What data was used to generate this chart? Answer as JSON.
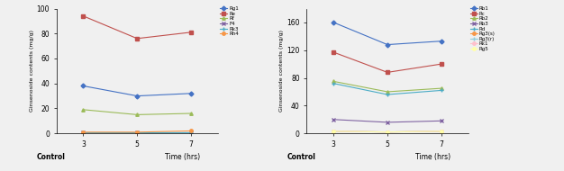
{
  "left": {
    "x_ticks": [
      3,
      5,
      7
    ],
    "series": [
      {
        "name": "Rg1",
        "values": [
          38,
          30,
          32
        ],
        "color": "#4472C4",
        "marker": "D"
      },
      {
        "name": "Re",
        "values": [
          94,
          76,
          81
        ],
        "color": "#C0504D",
        "marker": "s"
      },
      {
        "name": "Rf",
        "values": [
          19,
          15,
          16
        ],
        "color": "#9BBB59",
        "marker": "^"
      },
      {
        "name": "F4",
        "values": [
          1,
          1,
          1
        ],
        "color": "#8064A2",
        "marker": "x"
      },
      {
        "name": "Rk3",
        "values": [
          1,
          1,
          1
        ],
        "color": "#4BACC6",
        "marker": "+"
      },
      {
        "name": "Rh4",
        "values": [
          1,
          1,
          2
        ],
        "color": "#F79646",
        "marker": "o"
      }
    ],
    "ylabel": "Ginsenoside contents (mg/g)",
    "xlabel": "Time (hrs)",
    "ylim": [
      0,
      100
    ],
    "yticks": [
      0,
      20,
      40,
      60,
      80,
      100
    ]
  },
  "right": {
    "x_ticks": [
      3,
      5,
      7
    ],
    "series": [
      {
        "name": "Rb1",
        "values": [
          160,
          128,
          133
        ],
        "color": "#4472C4",
        "marker": "D"
      },
      {
        "name": "Rc",
        "values": [
          117,
          88,
          100
        ],
        "color": "#C0504D",
        "marker": "s"
      },
      {
        "name": "Rb2",
        "values": [
          75,
          60,
          65
        ],
        "color": "#9BBB59",
        "marker": "^"
      },
      {
        "name": "Rb3",
        "values": [
          20,
          16,
          18
        ],
        "color": "#8064A2",
        "marker": "x"
      },
      {
        "name": "Rd",
        "values": [
          72,
          56,
          62
        ],
        "color": "#4BACC6",
        "marker": "+"
      },
      {
        "name": "Rg3(s)",
        "values": [
          3,
          2,
          3
        ],
        "color": "#F79646",
        "marker": "o"
      },
      {
        "name": "Rg3(r)",
        "values": [
          3,
          2,
          3
        ],
        "color": "#92CDDC",
        "marker": "+"
      },
      {
        "name": "Rk1",
        "values": [
          3,
          2,
          3
        ],
        "color": "#FFC0CB",
        "marker": "o"
      },
      {
        "name": "Rg5",
        "values": [
          3,
          2,
          3
        ],
        "color": "#FFFFAA",
        "marker": "o"
      }
    ],
    "ylabel": "Ginsenoside contents (mg/g)",
    "xlabel": "Time (hrs)",
    "ylim": [
      0,
      180
    ],
    "yticks": [
      0,
      40,
      80,
      120,
      160
    ]
  },
  "bg_color": "#F0F0F0",
  "control_label": "Control"
}
